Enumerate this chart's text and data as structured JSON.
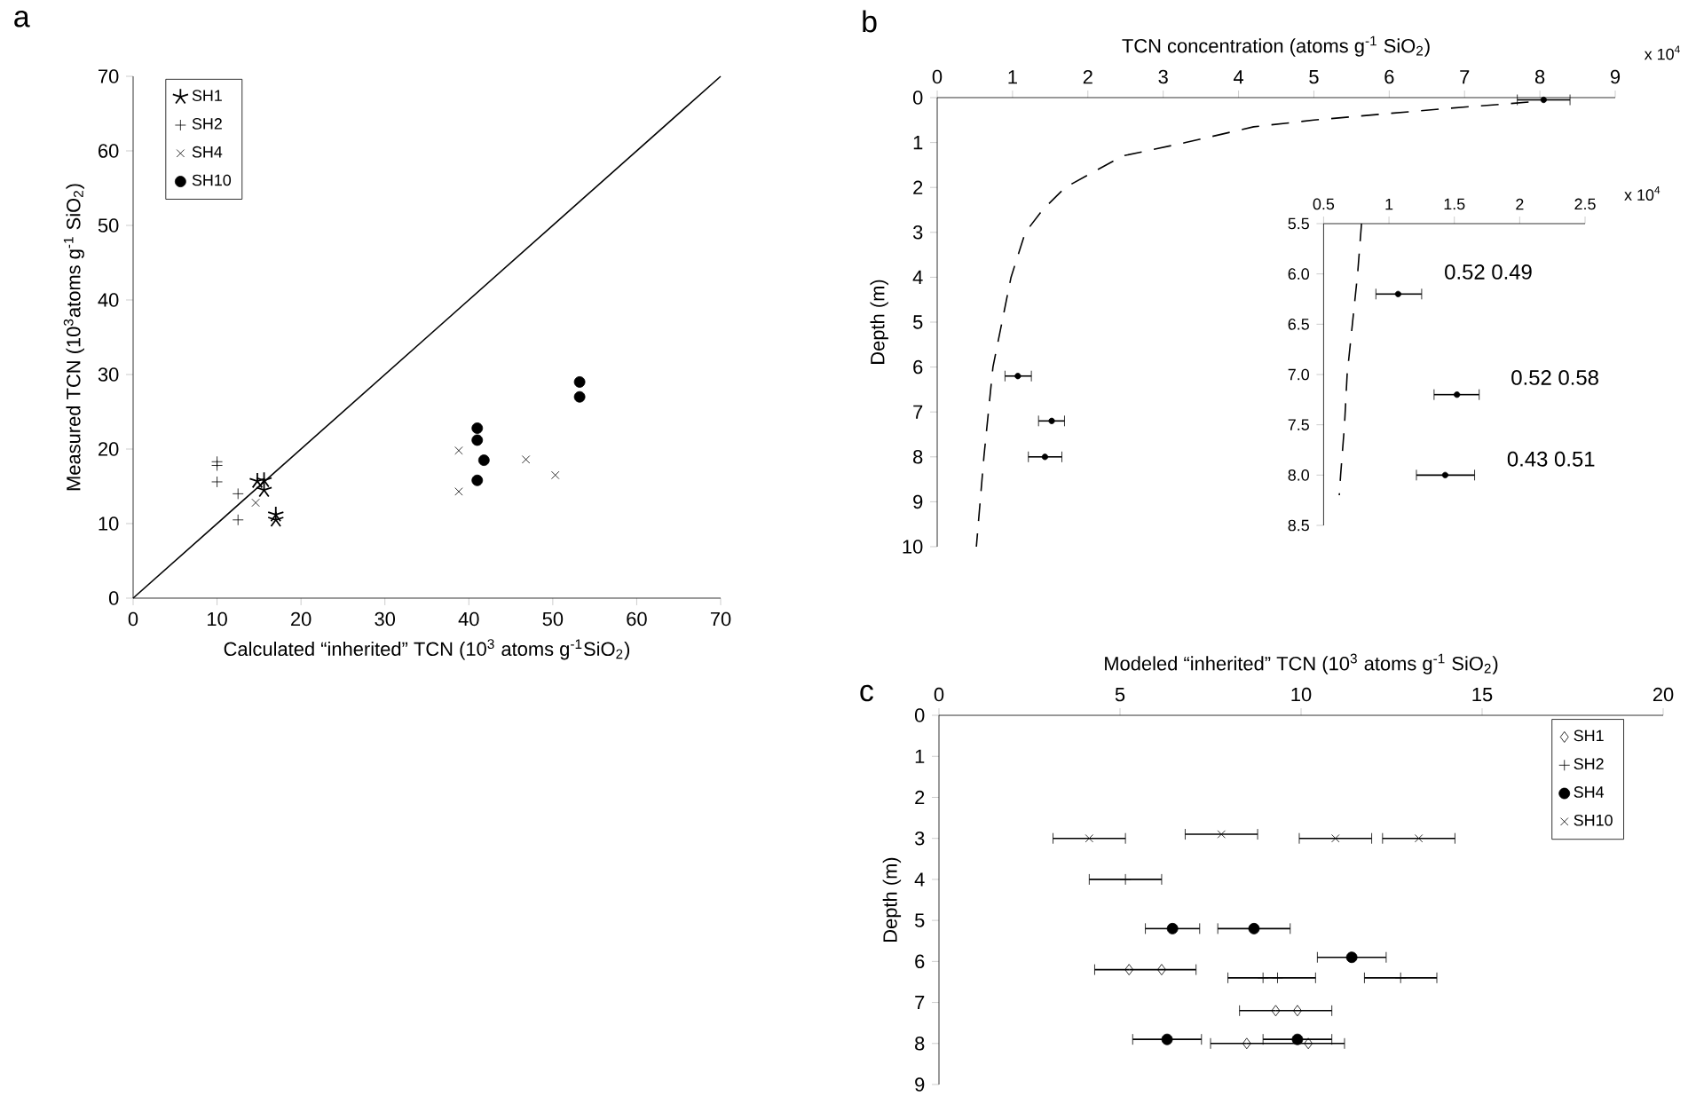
{
  "chart_data": [
    {
      "type": "scatter",
      "annotations": [
        "a"
      ],
      "xlabel": "Calculated “inherited” TCN (10$^{3}$ atoms g$^{-1}$SiO$_{2}$)",
      "ylabel": "Measured TCN (10$^{3}$atoms g$^{-1}$ SiO$_{2}$)",
      "xlim": [
        0,
        70
      ],
      "ylim": [
        0,
        70
      ],
      "xticks": [
        0,
        10,
        20,
        30,
        40,
        50,
        60,
        70
      ],
      "yticks": [
        0,
        10,
        20,
        30,
        40,
        50,
        60,
        70
      ],
      "legend": "top left",
      "series": [
        {
          "name": "SH1",
          "color": "#000000",
          "x": [
            14.8,
            15.6,
            15.6,
            17,
            17
          ],
          "values": [
            15.7,
            15.8,
            14.5,
            11.2,
            10.5
          ]
        },
        {
          "name": "SH2",
          "marker": "plus",
          "color": "#000000",
          "x": [
            10,
            10,
            10,
            12.5,
            12.5
          ],
          "values": [
            18.3,
            17.8,
            15.6,
            14,
            10.5
          ]
        },
        {
          "name": "SH4",
          "marker": "cross",
          "color": "#000000",
          "x": [
            14.6,
            38.8,
            38.8,
            46.8,
            50.3
          ],
          "values": [
            12.8,
            19.8,
            14.3,
            18.6,
            16.5
          ]
        },
        {
          "name": "SH10",
          "marker": "circle",
          "color": "#000000",
          "x": [
            41,
            41,
            41.8,
            41,
            53.2,
            53.2
          ],
          "values": [
            22.8,
            21.2,
            18.5,
            15.8,
            29,
            27
          ]
        },
        {
          "type": "line",
          "marker": "none",
          "line_style": "solid",
          "color": "#000000",
          "x": [
            0,
            70
          ],
          "values": [
            0,
            70
          ]
        }
      ]
    },
    {
      "type": "scatter",
      "annotations": [
        "b",
        "x 10$^{4}$"
      ],
      "xlabel": "TCN concentration (atoms g$^{-1}$ SiO$_{2}$)",
      "ylabel": "Depth (m)",
      "xlim": [
        0,
        9
      ],
      "ylim": [
        10,
        0
      ],
      "xticks": [
        0,
        1,
        2,
        3,
        4,
        5,
        6,
        7,
        8,
        9
      ],
      "yticks": [
        0,
        1,
        2,
        3,
        4,
        5,
        6,
        7,
        8,
        9,
        10
      ],
      "series": [
        {
          "type": "line",
          "marker": "none",
          "line_style": "dashed",
          "color": "#000000",
          "x": [
            7.85,
            6.7,
            5.0,
            4.2,
            3.3,
            2.46,
            1.7,
            1.4,
            1.17,
            0.98,
            0.86,
            0.74,
            0.68,
            0.62,
            0.57,
            0.52
          ],
          "values": [
            0.1,
            0.25,
            0.5,
            0.65,
            1.0,
            1.3,
            2.0,
            2.5,
            3.0,
            4.0,
            5.0,
            6.0,
            7.0,
            8.0,
            9.0,
            10.0
          ]
        },
        {
          "marker": "circle",
          "color": "#000000",
          "x": [
            8.05,
            1.07,
            1.52,
            1.43
          ],
          "values": [
            0.05,
            6.2,
            7.2,
            8.0
          ],
          "xerrors": [
            [
              7.7,
              8.4
            ],
            [
              0.9,
              1.25
            ],
            [
              1.345,
              1.69
            ],
            [
              1.21,
              1.655
            ]
          ]
        }
      ]
    },
    {
      "type": "scatter",
      "annotations": [
        "x 10$^{4}$",
        "0.52 0.49",
        "0.52 0.58",
        "0.43 0.51"
      ],
      "xlim": [
        0.5,
        2.5
      ],
      "ylim": [
        8.5,
        5.5
      ],
      "xticks": [
        0.5,
        1,
        1.5,
        2,
        2.5
      ],
      "yticks": [
        {
          "value": 5.5,
          "label": "5.5"
        },
        {
          "value": 6,
          "label": "6.0"
        },
        {
          "value": 6.5,
          "label": "6.5"
        },
        {
          "value": 7,
          "label": "7.0"
        },
        {
          "value": 7.5,
          "label": "7.5"
        },
        {
          "value": 8,
          "label": "8.0"
        },
        {
          "value": 8.5,
          "label": "8.5"
        }
      ],
      "series": [
        {
          "type": "line",
          "marker": "none",
          "line_style": "dashed",
          "color": "#000000",
          "x": [
            0.79,
            0.76,
            0.72,
            0.68,
            0.66,
            0.63,
            0.62
          ],
          "values": [
            5.5,
            6.0,
            6.5,
            7.0,
            7.5,
            8.0,
            8.2
          ]
        },
        {
          "marker": "circle",
          "color": "#000000",
          "x": [
            1.07,
            1.52,
            1.43
          ],
          "values": [
            6.2,
            7.2,
            8.0
          ],
          "xerrors": [
            [
              0.9,
              1.25
            ],
            [
              1.345,
              1.69
            ],
            [
              1.21,
              1.655
            ]
          ]
        }
      ]
    },
    {
      "type": "scatter",
      "annotations": [
        "c"
      ],
      "xlabel": "Modeled “inherited” TCN (10$^{3}$ atoms g$^{-1}$ SiO$_{2}$)",
      "ylabel": "Depth (m)",
      "xlim": [
        0,
        20
      ],
      "ylim": [
        9,
        0
      ],
      "xticks": [
        0,
        5,
        10,
        15,
        20
      ],
      "yticks": [
        0,
        1,
        2,
        3,
        4,
        5,
        6,
        7,
        8,
        9
      ],
      "legend": "top right",
      "series": [
        {
          "name": "SH1",
          "marker": "diamond",
          "color": "#000000",
          "x": [
            5.25,
            6.15,
            9.3,
            9.9,
            8.5,
            10.2
          ],
          "values": [
            6.2,
            6.2,
            7.2,
            7.2,
            8.0,
            8.0
          ],
          "xerrors": [
            [
              4.3,
              7.1
            ],
            null,
            [
              8.3,
              10.85
            ],
            null,
            [
              7.5,
              11.2
            ],
            null
          ]
        },
        {
          "name": "SH2",
          "marker": "plus",
          "color": "#000000",
          "x": [
            5.15,
            8.95,
            9.35,
            12.75
          ],
          "values": [
            4.0,
            6.4,
            6.4,
            6.4
          ],
          "xerrors": [
            1,
            [
              7.98,
              10.4
            ],
            null,
            1
          ]
        },
        {
          "name": "SH4",
          "marker": "circle",
          "color": "#000000",
          "x": [
            6.45,
            8.7,
            11.4,
            6.3,
            9.9
          ],
          "values": [
            5.2,
            5.2,
            5.9,
            7.9,
            7.9
          ],
          "xerrors": [
            0.75,
            1,
            0.95,
            0.95,
            0.95
          ]
        },
        {
          "name": "SH10",
          "marker": "cross",
          "color": "#000000",
          "x": [
            4.15,
            7.8,
            10.95,
            13.25
          ],
          "values": [
            3.0,
            2.9,
            3.0,
            3.0
          ],
          "xerrors": [
            1,
            1,
            1,
            1
          ]
        }
      ]
    }
  ]
}
